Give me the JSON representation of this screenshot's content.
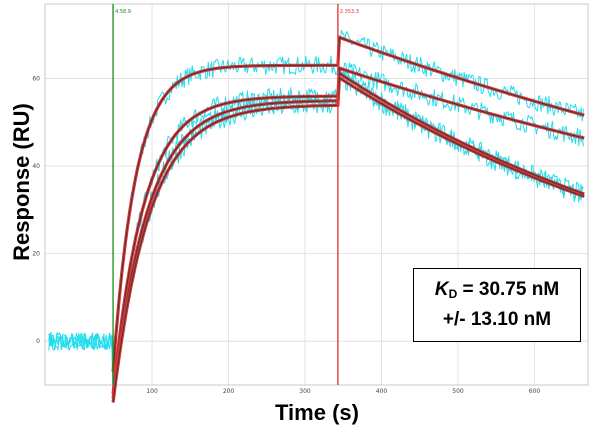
{
  "chart_data": {
    "type": "line",
    "title": "",
    "xlabel": "Time (s)",
    "ylabel": "Response (RU)",
    "xlim": [
      -40,
      670
    ],
    "ylim": [
      -10,
      77
    ],
    "x_ticks": [
      100,
      200,
      300,
      400,
      500,
      600
    ],
    "x_tick_labels": [
      "100",
      "200",
      "300",
      "400",
      "500",
      "600"
    ],
    "y_ticks": [
      0,
      20,
      40,
      60
    ],
    "y_tick_labels": [
      "0",
      "20",
      "40",
      "60"
    ],
    "grid": true,
    "markers": [
      {
        "name": "association-start",
        "x": 49,
        "label": "4.58.9",
        "color": "#1a8a1a"
      },
      {
        "name": "dissociation-start",
        "x": 343,
        "label": "2.353.3",
        "color": "#e53030"
      }
    ],
    "series": [
      {
        "name": "curve-1",
        "baseline": 0,
        "association_start": 49,
        "dissociation_start": 343,
        "plateau": 63,
        "k_on": 0.034,
        "start_offset": -7,
        "k_off": 0.00042,
        "end_x": 665
      },
      {
        "name": "curve-2",
        "baseline": 0,
        "association_start": 49,
        "dissociation_start": 343,
        "plateau": 56,
        "k_on": 0.025,
        "start_offset": -12,
        "k_off": 0.00042,
        "end_x": 665
      },
      {
        "name": "curve-3",
        "baseline": 0,
        "association_start": 49,
        "dissociation_start": 343,
        "plateau": 55,
        "k_on": 0.022,
        "start_offset": -13,
        "k_off": 0.00085,
        "end_x": 665
      },
      {
        "name": "curve-4",
        "baseline": 0,
        "association_start": 49,
        "dissociation_start": 343,
        "plateau": 54,
        "k_on": 0.021,
        "start_offset": -14,
        "k_off": 0.00085,
        "end_x": 665
      }
    ],
    "colors": {
      "raw": "#22ddee",
      "fit": "#e03434",
      "grid": "#dddddd"
    },
    "annotation": {
      "kd_symbol": "K",
      "kd_subscript": "D",
      "kd_value": " = 30.75 nM",
      "kd_error": "+/- 13.10 nM"
    }
  }
}
